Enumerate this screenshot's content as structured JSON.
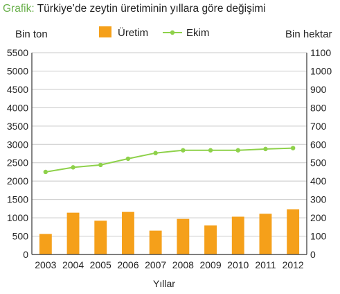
{
  "figure": {
    "title_prefix": "Grafik:",
    "title": "Türkiye’de zeytin üretiminin yıllara göre değişimi"
  },
  "chart_data": {
    "type": "bar",
    "categories": [
      "2003",
      "2004",
      "2005",
      "2006",
      "2007",
      "2008",
      "2009",
      "2010",
      "2011",
      "2012"
    ],
    "series": [
      {
        "name": "Üretim",
        "type": "bar",
        "axis": "left",
        "color": "#f5a01a",
        "values": [
          560,
          1140,
          920,
          1160,
          650,
          970,
          790,
          1030,
          1110,
          1230
        ]
      },
      {
        "name": "Ekim",
        "type": "line",
        "axis": "right",
        "color": "#8ed14a",
        "values": [
          450,
          475,
          488,
          522,
          553,
          568,
          568,
          568,
          575,
          580
        ]
      }
    ],
    "ylabel": "Bin ton",
    "y2label": "Bin hektar",
    "xlabel": "Yıllar",
    "ylim": [
      0,
      5500
    ],
    "y2lim": [
      0,
      1100
    ],
    "yticks": [
      "0",
      "500",
      "1000",
      "1500",
      "2000",
      "2500",
      "3000",
      "3500",
      "4000",
      "4500",
      "5000",
      "5500"
    ],
    "y2ticks": [
      "0",
      "100",
      "200",
      "300",
      "400",
      "500",
      "600",
      "700",
      "800",
      "900",
      "1000",
      "1100"
    ],
    "grid": true,
    "legend_position": "top-center"
  }
}
